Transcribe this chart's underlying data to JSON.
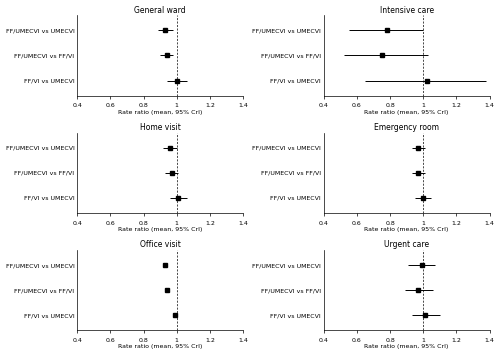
{
  "panels": [
    {
      "title": "General ward",
      "comparisons": [
        "FF/UMECVI vs UMECVI",
        "FF/UMECVI vs FF/VI",
        "FF/VI vs UMECVI"
      ],
      "means": [
        0.93,
        0.94,
        1.0
      ],
      "lowers": [
        0.89,
        0.9,
        0.94
      ],
      "uppers": [
        0.98,
        0.98,
        1.06
      ],
      "xlim": [
        0.4,
        1.4
      ],
      "xticks": [
        0.4,
        0.6,
        0.8,
        1.0,
        1.2,
        1.4
      ]
    },
    {
      "title": "Intensive care",
      "comparisons": [
        "FF/UMECVI vs UMECVI",
        "FF/UMECVI vs FF/VI",
        "FF/VI vs UMECVI"
      ],
      "means": [
        0.78,
        0.75,
        1.02
      ],
      "lowers": [
        0.55,
        0.52,
        0.65
      ],
      "uppers": [
        1.0,
        1.03,
        1.38
      ],
      "xlim": [
        0.4,
        1.4
      ],
      "xticks": [
        0.4,
        0.6,
        0.8,
        1.0,
        1.2,
        1.4
      ]
    },
    {
      "title": "Home visit",
      "comparisons": [
        "FF/UMECVI vs UMECVI",
        "FF/UMECVI vs FF/VI",
        "FF/VI vs UMECVI"
      ],
      "means": [
        0.96,
        0.97,
        1.01
      ],
      "lowers": [
        0.92,
        0.93,
        0.96
      ],
      "uppers": [
        1.0,
        1.01,
        1.06
      ],
      "xlim": [
        0.4,
        1.4
      ],
      "xticks": [
        0.4,
        0.6,
        0.8,
        1.0,
        1.2,
        1.4
      ]
    },
    {
      "title": "Emergency room",
      "comparisons": [
        "FF/UMECVI vs UMECVI",
        "FF/UMECVI vs FF/VI",
        "FF/VI vs UMECVI"
      ],
      "means": [
        0.97,
        0.97,
        1.0
      ],
      "lowers": [
        0.93,
        0.93,
        0.95
      ],
      "uppers": [
        1.01,
        1.01,
        1.05
      ],
      "xlim": [
        0.4,
        1.4
      ],
      "xticks": [
        0.4,
        0.6,
        0.8,
        1.0,
        1.2,
        1.4
      ]
    },
    {
      "title": "Office visit",
      "comparisons": [
        "FF/UMECVI vs UMECVI",
        "FF/UMECVI vs FF/VI",
        "FF/VI vs UMECVI"
      ],
      "means": [
        0.93,
        0.94,
        0.99
      ],
      "lowers": [
        0.93,
        0.94,
        0.99
      ],
      "uppers": [
        0.93,
        0.94,
        0.99
      ],
      "xlim": [
        0.4,
        1.4
      ],
      "xticks": [
        0.4,
        0.6,
        0.8,
        1.0,
        1.2,
        1.4
      ]
    },
    {
      "title": "Urgent care",
      "comparisons": [
        "FF/UMECVI vs UMECVI",
        "FF/UMECVI vs FF/VI",
        "FF/VI vs UMECVI"
      ],
      "means": [
        0.99,
        0.97,
        1.01
      ],
      "lowers": [
        0.91,
        0.89,
        0.93
      ],
      "uppers": [
        1.07,
        1.06,
        1.1
      ],
      "xlim": [
        0.4,
        1.4
      ],
      "xticks": [
        0.4,
        0.6,
        0.8,
        1.0,
        1.2,
        1.4
      ]
    }
  ],
  "xlabel": "Rate ratio (mean, 95% CrI)",
  "vline": 1.0,
  "marker_color": "black",
  "marker_size": 3.0,
  "line_color": "black",
  "line_width": 0.7,
  "title_fontsize": 5.5,
  "label_fontsize": 4.5,
  "tick_fontsize": 4.5,
  "xlabel_fontsize": 4.5
}
